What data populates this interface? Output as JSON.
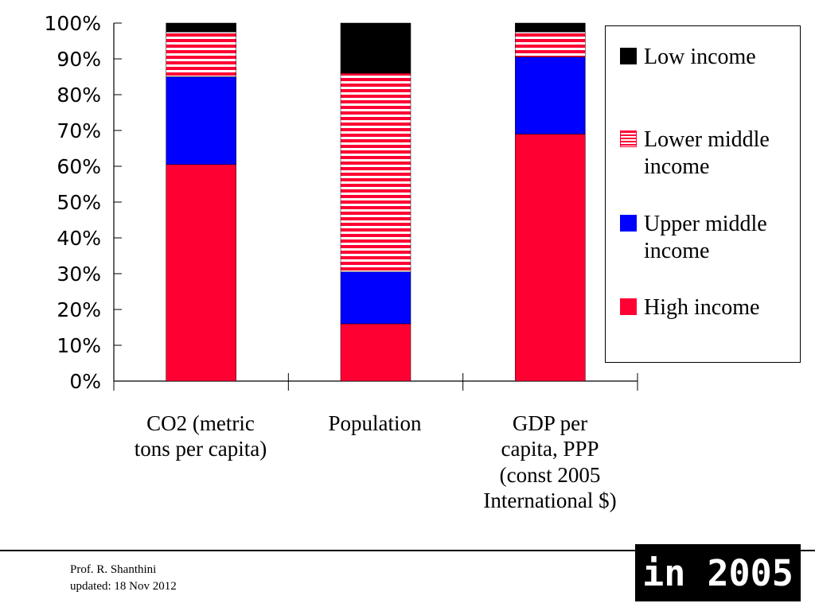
{
  "chart_data": {
    "type": "bar",
    "stacked": true,
    "categories": [
      "CO2 (metric\ntons per capita)",
      "Population",
      "GDP per\ncapita, PPP\n(const 2005\nInternational $)"
    ],
    "series": [
      {
        "name": "High income",
        "values": [
          60.5,
          16.0,
          69.0
        ],
        "color": "#ff0033",
        "pattern": "solid"
      },
      {
        "name": "Upper middle income",
        "values": [
          24.5,
          14.5,
          21.5
        ],
        "color": "#0000ff",
        "pattern": "solid"
      },
      {
        "name": "Lower middle income",
        "values": [
          12.5,
          55.5,
          7.0
        ],
        "color": "#ff0033",
        "pattern": "horizontal-stripes"
      },
      {
        "name": "Low income",
        "values": [
          2.5,
          14.0,
          2.5
        ],
        "color": "#000000",
        "pattern": "solid"
      }
    ],
    "ylim": [
      0,
      100
    ],
    "yticks": [
      "0%",
      "10%",
      "20%",
      "30%",
      "40%",
      "50%",
      "60%",
      "70%",
      "80%",
      "90%",
      "100%"
    ],
    "legend_order": [
      "Low income",
      "Lower middle income",
      "Upper middle income",
      "High income"
    ],
    "legend_placement": "right",
    "grid": false
  },
  "legend": {
    "low": "Low income",
    "lower_middle": "Lower middle\nincome",
    "upper_middle": "Upper middle\nincome",
    "high": "High income"
  },
  "footer": {
    "author": "Prof. R. Shanthini",
    "updated": "updated: 18 Nov 2012",
    "year_badge": "in 2005"
  }
}
